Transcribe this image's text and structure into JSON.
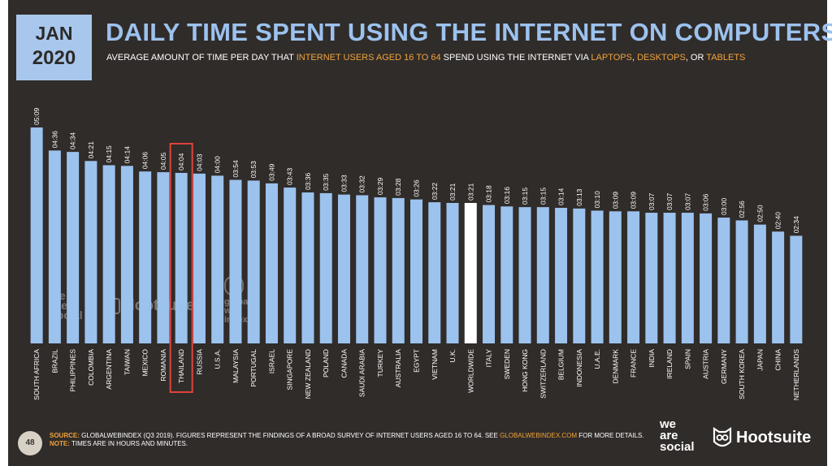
{
  "badge": {
    "month": "JAN",
    "year": "2020"
  },
  "title": "DAILY TIME SPENT USING THE INTERNET ON COMPUTERS",
  "subtitle": {
    "part1": "AVERAGE AMOUNT OF TIME PER DAY THAT ",
    "hl1": "INTERNET USERS AGED 16 TO 64",
    "part2": " SPEND USING THE INTERNET VIA ",
    "hl2": "LAPTOPS",
    "sep1": ", ",
    "hl3": "DESKTOPS",
    "sep2": ", OR ",
    "hl4": "TABLETS"
  },
  "colors": {
    "panel": "#302c2a",
    "bar": "#9cc2ee",
    "highlight_bar": "#ffffff",
    "accent": "#f2a33a",
    "highlight_box": "#e0443c"
  },
  "chart_data": {
    "type": "bar",
    "categories": [
      "SOUTH AFRICA",
      "BRAZIL",
      "PHILIPPINES",
      "COLOMBIA",
      "ARGENTINA",
      "TAIWAN",
      "MEXICO",
      "ROMANIA",
      "THAILAND",
      "RUSSIA",
      "U.S.A.",
      "MALAYSIA",
      "PORTUGAL",
      "ISRAEL",
      "SINGAPORE",
      "NEW ZEALAND",
      "POLAND",
      "CANADA",
      "SAUDI ARABIA",
      "TURKEY",
      "AUSTRALIA",
      "EGYPT",
      "VIETNAM",
      "U.K.",
      "WORLDWIDE",
      "ITALY",
      "SWEDEN",
      "HONG KONG",
      "SWITZERLAND",
      "BELGIUM",
      "INDONESIA",
      "U.A.E.",
      "DENMARK",
      "FRANCE",
      "INDIA",
      "IRELAND",
      "SPAIN",
      "AUSTRIA",
      "GERMANY",
      "SOUTH KOREA",
      "JAPAN",
      "CHINA",
      "NETHERLANDS"
    ],
    "labels": [
      "05:09",
      "04:36",
      "04:34",
      "04:21",
      "04:15",
      "04:14",
      "04:06",
      "04:05",
      "04:04",
      "04:03",
      "04:00",
      "03:54",
      "03:53",
      "03:49",
      "03:43",
      "03:36",
      "03:35",
      "03:33",
      "03:32",
      "03:29",
      "03:28",
      "03:26",
      "03:22",
      "03:21",
      "03:21",
      "03:18",
      "03:16",
      "03:15",
      "03:15",
      "03:14",
      "03:13",
      "03:10",
      "03:09",
      "03:09",
      "03:07",
      "03:07",
      "03:07",
      "03:06",
      "03:00",
      "02:56",
      "02:50",
      "02:40",
      "02:34"
    ],
    "values": [
      309,
      276,
      274,
      261,
      255,
      254,
      246,
      245,
      244,
      243,
      240,
      234,
      233,
      229,
      223,
      216,
      215,
      213,
      212,
      209,
      208,
      206,
      202,
      201,
      201,
      198,
      196,
      195,
      195,
      194,
      193,
      190,
      189,
      189,
      187,
      187,
      187,
      186,
      180,
      176,
      170,
      160,
      154
    ],
    "highlighted_bar": "WORLDWIDE",
    "boxed_category": "THAILAND",
    "ylim": [
      0,
      309
    ]
  },
  "watermarks": {
    "was": [
      "we",
      "are",
      "social"
    ],
    "hootsuite": "Hootsuite",
    "gwi": [
      "global",
      "web",
      "index"
    ]
  },
  "footer": {
    "page": "48",
    "source_label": "SOURCE:",
    "source_text": " GLOBALWEBINDEX (Q3 2019). FIGURES REPRESENT THE FINDINGS OF A BROAD SURVEY OF INTERNET USERS AGED 16 TO 64. SEE ",
    "source_link": "GLOBALWEBINDEX.COM",
    "source_end": " FOR MORE DETAILS.",
    "note_label": "NOTE:",
    "note_text": " TIMES ARE IN HOURS AND MINUTES."
  },
  "logos": {
    "was": [
      "we",
      "are",
      "social"
    ],
    "hootsuite": "Hootsuite"
  }
}
